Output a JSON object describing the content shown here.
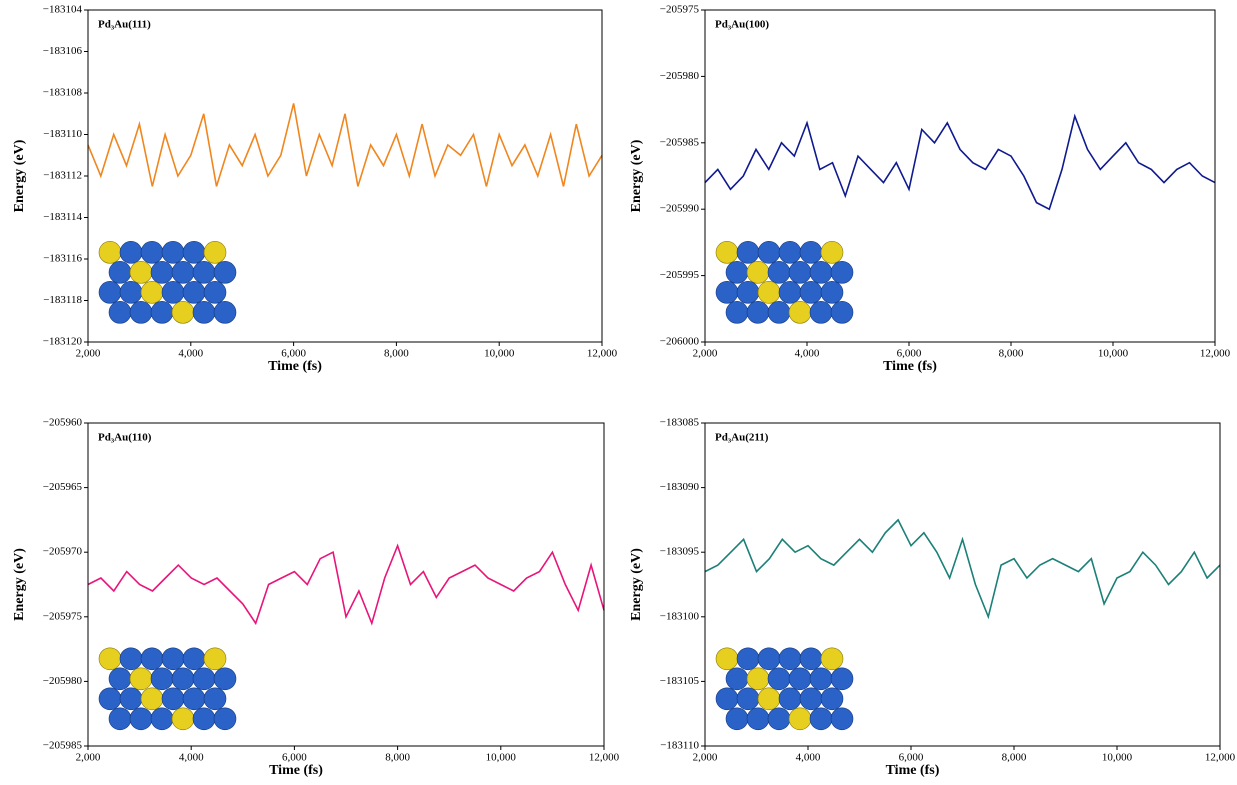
{
  "chart_data": [
    {
      "type": "line",
      "title": "Pd₃Au(111)",
      "x_label": "Time (fs)",
      "y_label": "Energy (eV)",
      "color": "#f0861e",
      "x": [
        2000,
        2250,
        2500,
        2750,
        3000,
        3250,
        3500,
        3750,
        4000,
        4250,
        4500,
        4750,
        5000,
        5250,
        5500,
        5750,
        6000,
        6250,
        6500,
        6750,
        7000,
        7250,
        7500,
        7750,
        8000,
        8250,
        8500,
        8750,
        9000,
        9250,
        9500,
        9750,
        10000,
        10250,
        10500,
        10750,
        11000,
        11250,
        11500,
        11750,
        12000
      ],
      "values": [
        -183110.5,
        -183112,
        -183110,
        -183111.5,
        -183109.5,
        -183112.5,
        -183110,
        -183112,
        -183111,
        -183109,
        -183112.5,
        -183110.5,
        -183111.5,
        -183110,
        -183112,
        -183111,
        -183108.5,
        -183112,
        -183110,
        -183111.5,
        -183109,
        -183112.5,
        -183110.5,
        -183111.5,
        -183110,
        -183112,
        -183109.5,
        -183112,
        -183110.5,
        -183111,
        -183110,
        -183112.5,
        -183110,
        -183111.5,
        -183110.5,
        -183112,
        -183110,
        -183112.5,
        -183109.5,
        -183112,
        -183111
      ],
      "xlim": [
        2000,
        12000
      ],
      "ylim": [
        -183120,
        -183104
      ],
      "xticks": [
        {
          "value": 2000,
          "label": "2,000"
        },
        {
          "value": 4000,
          "label": "4,000"
        },
        {
          "value": 6000,
          "label": "6,000"
        },
        {
          "value": 8000,
          "label": "8,000"
        },
        {
          "value": 10000,
          "label": "10,000"
        },
        {
          "value": 12000,
          "label": "12,000"
        }
      ],
      "yticks": [
        {
          "value": -183120,
          "label": "−183120"
        },
        {
          "value": -183118,
          "label": "−183118"
        },
        {
          "value": -183116,
          "label": "−183116"
        },
        {
          "value": -183114,
          "label": "−183114"
        },
        {
          "value": -183112,
          "label": "−183112"
        },
        {
          "value": -183110,
          "label": "−183110"
        },
        {
          "value": -183108,
          "label": "−183108"
        },
        {
          "value": -183106,
          "label": "−183106"
        },
        {
          "value": -183104,
          "label": "−183104"
        }
      ]
    },
    {
      "type": "line",
      "title": "Pd₃Au(100)",
      "x_label": "Time (fs)",
      "y_label": "Energy (eV)",
      "color": "#0f1a8f",
      "x": [
        2000,
        2250,
        2500,
        2750,
        3000,
        3250,
        3500,
        3750,
        4000,
        4250,
        4500,
        4750,
        5000,
        5250,
        5500,
        5750,
        6000,
        6250,
        6500,
        6750,
        7000,
        7250,
        7500,
        7750,
        8000,
        8250,
        8500,
        8750,
        9000,
        9250,
        9500,
        9750,
        10000,
        10250,
        10500,
        10750,
        11000,
        11250,
        11500,
        11750,
        12000
      ],
      "values": [
        -205988,
        -205987,
        -205988.5,
        -205987.5,
        -205985.5,
        -205987,
        -205985,
        -205986,
        -205983.5,
        -205987,
        -205986.5,
        -205989,
        -205986,
        -205987,
        -205988,
        -205986.5,
        -205988.5,
        -205984,
        -205985,
        -205983.5,
        -205985.5,
        -205986.5,
        -205987,
        -205985.5,
        -205986,
        -205987.5,
        -205989.5,
        -205990,
        -205987,
        -205983,
        -205985.5,
        -205987,
        -205986,
        -205985,
        -205986.5,
        -205987,
        -205988,
        -205987,
        -205986.5,
        -205987.5,
        -205988
      ],
      "xlim": [
        2000,
        12000
      ],
      "ylim": [
        -206000,
        -205975
      ],
      "xticks": [
        {
          "value": 2000,
          "label": "2,000"
        },
        {
          "value": 4000,
          "label": "4,000"
        },
        {
          "value": 6000,
          "label": "6,000"
        },
        {
          "value": 8000,
          "label": "8,000"
        },
        {
          "value": 10000,
          "label": "10,000"
        },
        {
          "value": 12000,
          "label": "12,000"
        }
      ],
      "yticks": [
        {
          "value": -206000,
          "label": "−206000"
        },
        {
          "value": -205995,
          "label": "−205995"
        },
        {
          "value": -205990,
          "label": "−205990"
        },
        {
          "value": -205985,
          "label": "−205985"
        },
        {
          "value": -205980,
          "label": "−205980"
        },
        {
          "value": -205975,
          "label": "−205975"
        }
      ]
    },
    {
      "type": "line",
      "title": "Pd₃Au(110)",
      "x_label": "Time (fs)",
      "y_label": "Energy (eV)",
      "color": "#e8157a",
      "x": [
        2000,
        2250,
        2500,
        2750,
        3000,
        3250,
        3500,
        3750,
        4000,
        4250,
        4500,
        4750,
        5000,
        5250,
        5500,
        5750,
        6000,
        6250,
        6500,
        6750,
        7000,
        7250,
        7500,
        7750,
        8000,
        8250,
        8500,
        8750,
        9000,
        9250,
        9500,
        9750,
        10000,
        10250,
        10500,
        10750,
        11000,
        11250,
        11500,
        11750,
        12000
      ],
      "values": [
        -205972.5,
        -205972,
        -205973,
        -205971.5,
        -205972.5,
        -205973,
        -205972,
        -205971,
        -205972,
        -205972.5,
        -205972,
        -205973,
        -205974,
        -205975.5,
        -205972.5,
        -205972,
        -205971.5,
        -205972.5,
        -205970.5,
        -205970,
        -205975,
        -205973,
        -205975.5,
        -205972,
        -205969.5,
        -205972.5,
        -205971.5,
        -205973.5,
        -205972,
        -205971.5,
        -205971,
        -205972,
        -205972.5,
        -205973,
        -205972,
        -205971.5,
        -205970,
        -205972.5,
        -205974.5,
        -205971,
        -205974.5
      ],
      "xlim": [
        2000,
        12000
      ],
      "ylim": [
        -205985,
        -205960
      ],
      "xticks": [
        {
          "value": 2000,
          "label": "2,000"
        },
        {
          "value": 4000,
          "label": "4,000"
        },
        {
          "value": 6000,
          "label": "6,000"
        },
        {
          "value": 8000,
          "label": "8,000"
        },
        {
          "value": 10000,
          "label": "10,000"
        },
        {
          "value": 12000,
          "label": "12,000"
        }
      ],
      "yticks": [
        {
          "value": -205985,
          "label": "−205985"
        },
        {
          "value": -205980,
          "label": "−205980"
        },
        {
          "value": -205975,
          "label": "−205975"
        },
        {
          "value": -205970,
          "label": "−205970"
        },
        {
          "value": -205965,
          "label": "−205965"
        },
        {
          "value": -205960,
          "label": "−205960"
        }
      ]
    },
    {
      "type": "line",
      "title": "Pd₃Au(211)",
      "x_label": "Time (fs)",
      "y_label": "Energy (eV)",
      "color": "#1b8077",
      "x": [
        2000,
        2250,
        2500,
        2750,
        3000,
        3250,
        3500,
        3750,
        4000,
        4250,
        4500,
        4750,
        5000,
        5250,
        5500,
        5750,
        6000,
        6250,
        6500,
        6750,
        7000,
        7250,
        7500,
        7750,
        8000,
        8250,
        8500,
        8750,
        9000,
        9250,
        9500,
        9750,
        10000,
        10250,
        10500,
        10750,
        11000,
        11250,
        11500,
        11750,
        12000
      ],
      "values": [
        -183096.5,
        -183096,
        -183095,
        -183094,
        -183096.5,
        -183095.5,
        -183094,
        -183095,
        -183094.5,
        -183095.5,
        -183096,
        -183095,
        -183094,
        -183095,
        -183093.5,
        -183092.5,
        -183094.5,
        -183093.5,
        -183095,
        -183097,
        -183094,
        -183097.5,
        -183100,
        -183096,
        -183095.5,
        -183097,
        -183096,
        -183095.5,
        -183096,
        -183096.5,
        -183095.5,
        -183099,
        -183097,
        -183096.5,
        -183095,
        -183096,
        -183097.5,
        -183096.5,
        -183095,
        -183097,
        -183096
      ],
      "xlim": [
        2000,
        12000
      ],
      "ylim": [
        -183110,
        -183085
      ],
      "xticks": [
        {
          "value": 2000,
          "label": "2,000"
        },
        {
          "value": 4000,
          "label": "4,000"
        },
        {
          "value": 6000,
          "label": "6,000"
        },
        {
          "value": 8000,
          "label": "8,000"
        },
        {
          "value": 10000,
          "label": "10,000"
        },
        {
          "value": 12000,
          "label": "12,000"
        }
      ],
      "yticks": [
        {
          "value": -183110,
          "label": "−183110"
        },
        {
          "value": -183105,
          "label": "−183105"
        },
        {
          "value": -183100,
          "label": "−183100"
        },
        {
          "value": -183095,
          "label": "−183095"
        },
        {
          "value": -183090,
          "label": "−183090"
        },
        {
          "value": -183085,
          "label": "−183085"
        }
      ]
    }
  ]
}
